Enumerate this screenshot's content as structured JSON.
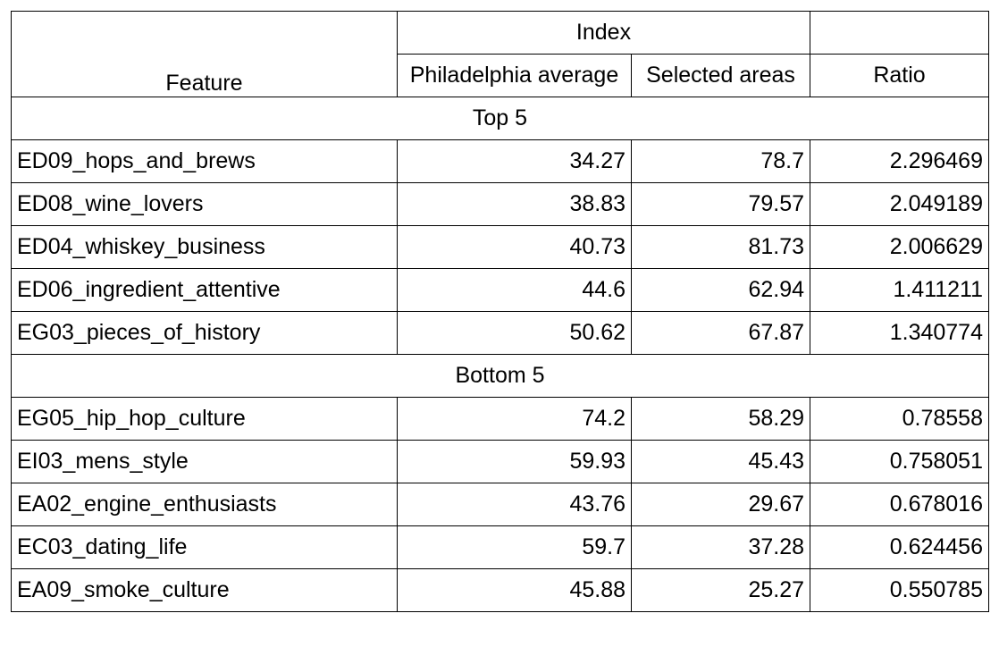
{
  "table": {
    "headers": {
      "feature": "Feature",
      "index": "Index",
      "philadelphia_average": "Philadelphia average",
      "selected_areas": "Selected areas",
      "ratio": "Ratio"
    },
    "sections": [
      {
        "title": "Top 5",
        "rows": [
          {
            "feature": "ED09_hops_and_brews",
            "philadelphia_average": "34.27",
            "selected_areas": "78.7",
            "ratio": "2.296469"
          },
          {
            "feature": "ED08_wine_lovers",
            "philadelphia_average": "38.83",
            "selected_areas": "79.57",
            "ratio": "2.049189"
          },
          {
            "feature": "ED04_whiskey_business",
            "philadelphia_average": "40.73",
            "selected_areas": "81.73",
            "ratio": "2.006629"
          },
          {
            "feature": "ED06_ingredient_attentive",
            "philadelphia_average": "44.6",
            "selected_areas": "62.94",
            "ratio": "1.411211"
          },
          {
            "feature": "EG03_pieces_of_history",
            "philadelphia_average": "50.62",
            "selected_areas": "67.87",
            "ratio": "1.340774"
          }
        ]
      },
      {
        "title": "Bottom 5",
        "rows": [
          {
            "feature": "EG05_hip_hop_culture",
            "philadelphia_average": "74.2",
            "selected_areas": "58.29",
            "ratio": "0.78558"
          },
          {
            "feature": "EI03_mens_style",
            "philadelphia_average": "59.93",
            "selected_areas": "45.43",
            "ratio": "0.758051"
          },
          {
            "feature": "EA02_engine_enthusiasts",
            "philadelphia_average": "43.76",
            "selected_areas": "29.67",
            "ratio": "0.678016"
          },
          {
            "feature": "EC03_dating_life",
            "philadelphia_average": "59.7",
            "selected_areas": "37.28",
            "ratio": "0.624456"
          },
          {
            "feature": "EA09_smoke_culture",
            "philadelphia_average": "45.88",
            "selected_areas": "25.27",
            "ratio": "0.550785"
          }
        ]
      }
    ]
  }
}
